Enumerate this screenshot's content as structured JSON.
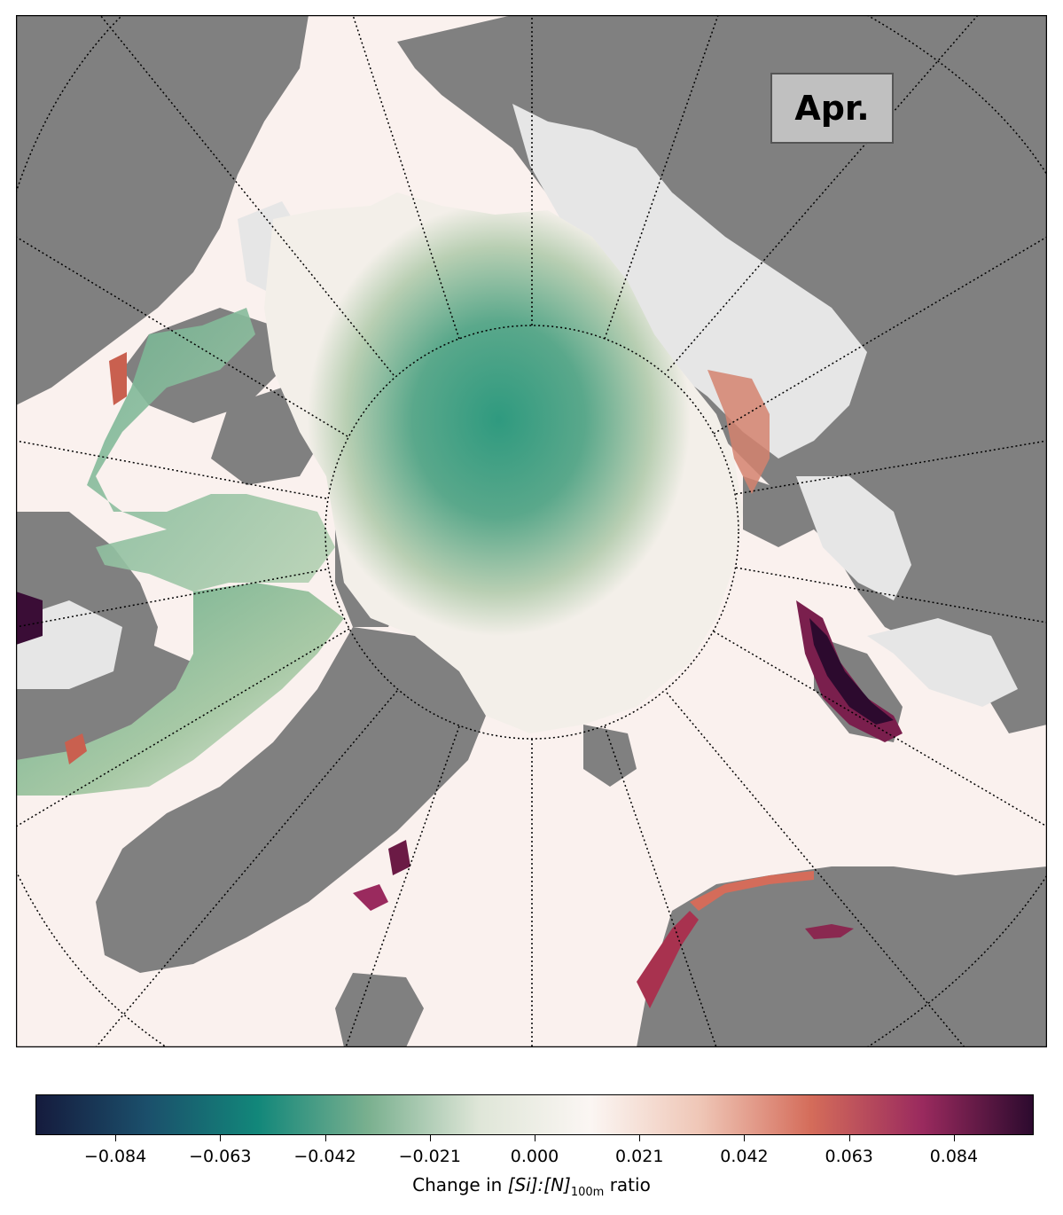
{
  "figure": {
    "month_label": "Apr.",
    "colormap": {
      "name": "diverging teal-white-maroon",
      "stops": [
        "#151b3d",
        "#1b4f6b",
        "#12877a",
        "#7ab08f",
        "#dfe6d8",
        "#fbf6f3",
        "#efc6b6",
        "#d46c5a",
        "#9a2a5e",
        "#2c0a2e"
      ]
    },
    "colorbar": {
      "ticks": [
        "−0.084",
        "−0.063",
        "−0.042",
        "−0.021",
        "0.000",
        "0.021",
        "0.042",
        "0.063",
        "0.084"
      ],
      "range": [
        -0.1,
        0.1
      ],
      "label_prefix": "Change in ",
      "label_math": "[Si]:[N]",
      "label_subscript": "100m",
      "label_suffix": " ratio"
    },
    "colors": {
      "land": "#808080",
      "ice_no_data": "#e6e6e6",
      "inner_lakes": "#b0b0b0",
      "graticule": "#000000"
    },
    "map_legend": [
      "Apr."
    ]
  }
}
